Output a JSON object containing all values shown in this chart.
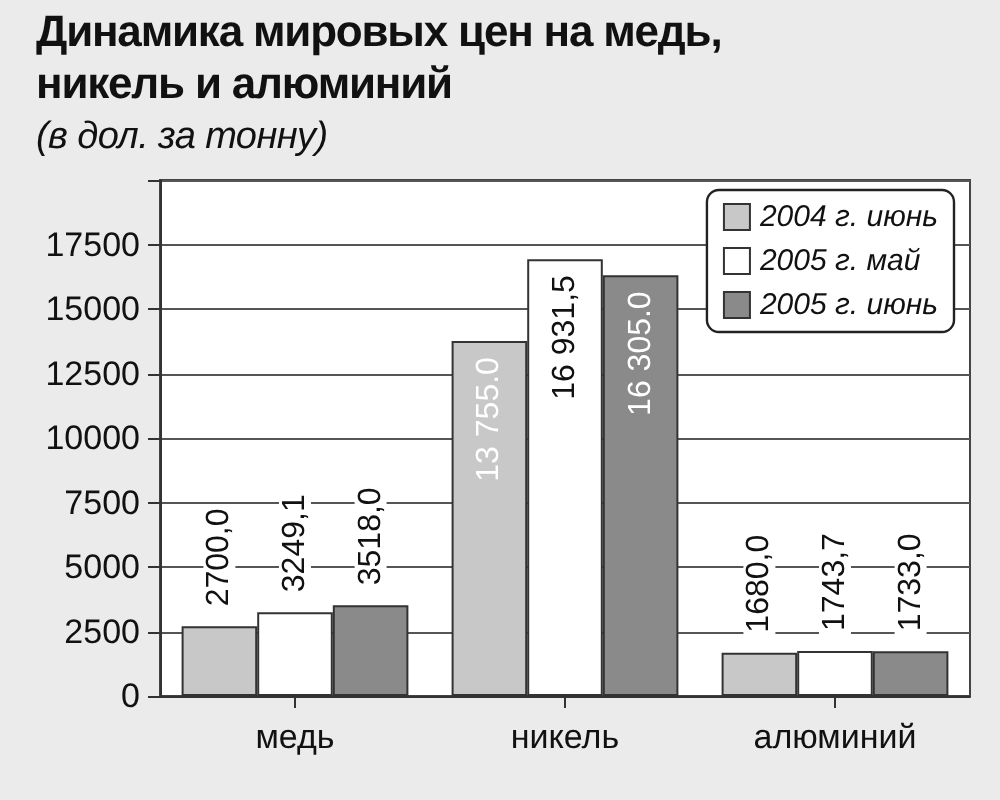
{
  "chart_data": {
    "type": "bar",
    "title": "Динамика мировых цен на медь, никель и алюминий",
    "subtitle": "(в дол. за тонну)",
    "categories": [
      "медь",
      "никель",
      "алюминий"
    ],
    "series": [
      {
        "name": "2004 г. июнь",
        "color": "#c8c8c8",
        "values": [
          2700.0,
          13755.0,
          1680.0
        ],
        "value_labels": [
          "2700,0",
          "13 755.0",
          "1680,0"
        ]
      },
      {
        "name": "2005 г. май",
        "color": "#ffffff",
        "values": [
          3249.1,
          16931.5,
          1743.7
        ],
        "value_labels": [
          "3249,1",
          "16 931,5",
          "1743,7"
        ]
      },
      {
        "name": "2005 г. июнь",
        "color": "#8a8a8a",
        "values": [
          3518.0,
          16305.0,
          1733.0
        ],
        "value_labels": [
          "3518,0",
          "16 305.0",
          "1733,0"
        ]
      }
    ],
    "ylim": [
      0,
      20000
    ],
    "yticks": [
      0,
      2500,
      5000,
      7500,
      10000,
      12500,
      15000,
      17500,
      {
        "value": 20000,
        "label": null
      }
    ],
    "grid": "y",
    "legend": "top right"
  }
}
